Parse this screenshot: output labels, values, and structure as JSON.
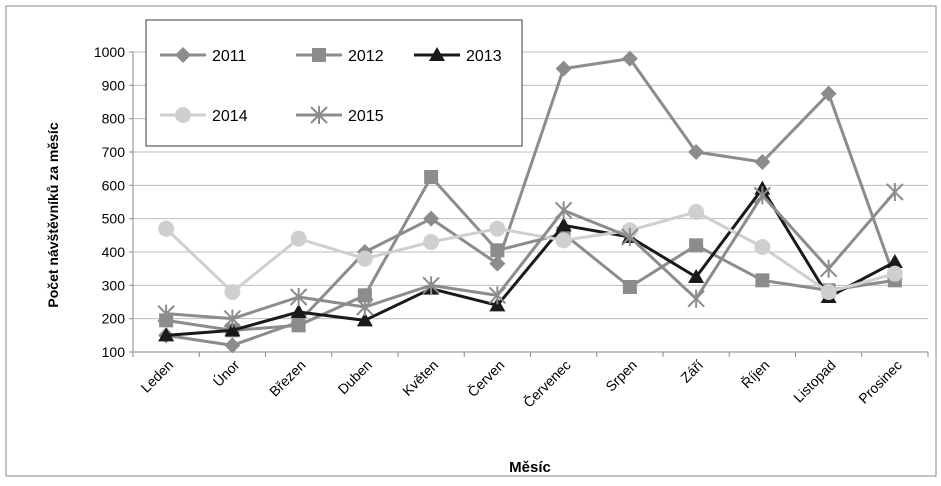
{
  "chart_data": {
    "type": "line",
    "xlabel": "Měsíc",
    "ylabel": "Počet návštěvníků za měsíc",
    "ylim": [
      100,
      1000
    ],
    "yticks": [
      100,
      200,
      300,
      400,
      500,
      600,
      700,
      800,
      900,
      1000
    ],
    "grid": "horizontal",
    "legend_position": "top-left",
    "categories": [
      "Leden",
      "Únor",
      "Březen",
      "Duben",
      "Květen",
      "Červen",
      "Červenec",
      "Srpen",
      "Září",
      "Říjen",
      "Listopad",
      "Prosinec"
    ],
    "series": [
      {
        "name": "2011",
        "marker": "diamond",
        "color": "#8c8c8c",
        "values": [
          150,
          120,
          190,
          400,
          500,
          365,
          950,
          980,
          700,
          670,
          875,
          320
        ]
      },
      {
        "name": "2012",
        "marker": "square",
        "color": "#8c8c8c",
        "values": [
          195,
          165,
          180,
          270,
          625,
          405,
          455,
          295,
          420,
          315,
          285,
          315
        ]
      },
      {
        "name": "2013",
        "marker": "triangle",
        "color": "#1a1a1a",
        "values": [
          150,
          165,
          220,
          195,
          290,
          240,
          480,
          445,
          325,
          590,
          265,
          370
        ]
      },
      {
        "name": "2014",
        "marker": "circle",
        "color": "#cfcfcf",
        "values": [
          470,
          280,
          440,
          380,
          430,
          470,
          435,
          465,
          520,
          415,
          280,
          335
        ]
      },
      {
        "name": "2015",
        "marker": "star",
        "color": "#8c8c8c",
        "values": [
          215,
          200,
          265,
          235,
          300,
          270,
          525,
          445,
          260,
          570,
          350,
          580
        ]
      }
    ]
  }
}
